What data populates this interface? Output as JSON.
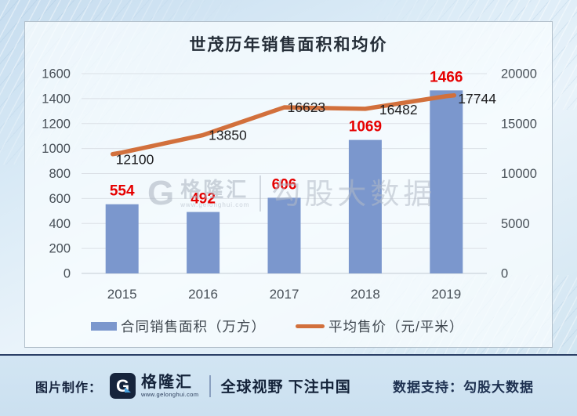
{
  "title": "世茂历年销售面积和均价",
  "chart_data": {
    "type": "combo_bar_line",
    "title": "世茂历年销售面积和均价",
    "categories": [
      "2015",
      "2016",
      "2017",
      "2018",
      "2019"
    ],
    "series": [
      {
        "name": "合同销售面积（万方）",
        "type": "bar",
        "axis": "left",
        "color": "#7b97cd",
        "label_color": "#e60000",
        "values": [
          554,
          492,
          606,
          1069,
          1466
        ]
      },
      {
        "name": "平均售价（元/平米）",
        "type": "line",
        "axis": "right",
        "color": "#d2703c",
        "label_color": "#1d1d1f",
        "values": [
          12100,
          13850,
          16623,
          16482,
          17744
        ]
      }
    ],
    "left_axis": {
      "min": 0,
      "max": 1600,
      "step": 200,
      "ticks": [
        0,
        200,
        400,
        600,
        800,
        1000,
        1200,
        1400,
        1600
      ]
    },
    "right_axis": {
      "min": 0,
      "max": 20000,
      "step": 5000,
      "ticks": [
        0,
        5000,
        10000,
        15000,
        20000
      ]
    },
    "grid": true,
    "legend_position": "bottom"
  },
  "watermark": {
    "logo_letter": "G",
    "brand": "格隆汇",
    "url": "www.gelonghui.com",
    "partner": "勾股大数据"
  },
  "footer": {
    "made_by_label": "图片制作：",
    "logo_letter": "G",
    "brand": "格隆汇",
    "brand_url": "www.gelonghui.com",
    "slogan": "全球视野 下注中国",
    "data_support": "数据支持：勾股大数据"
  },
  "colors": {
    "bar": "#7b97cd",
    "line": "#d2703c",
    "bar_label": "#e60000",
    "line_label": "#1d1d1f",
    "navy": "#16243c"
  }
}
